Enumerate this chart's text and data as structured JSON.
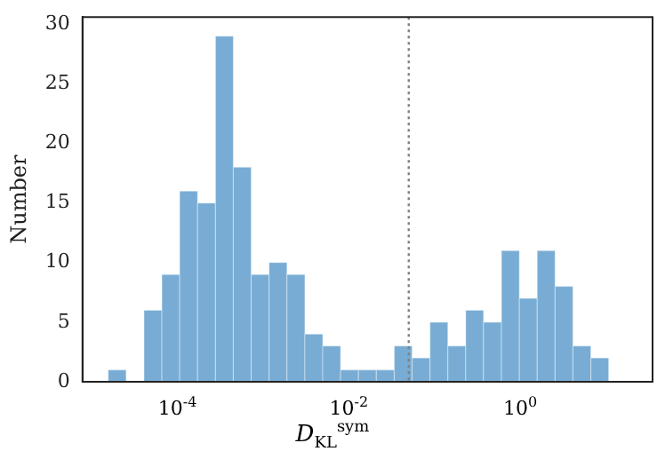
{
  "chart_data": {
    "type": "histogram",
    "xlabel": "D$_{KL}$$^{sym}$",
    "ylabel": "Number",
    "bins": [
      1.556e-05,
      2.52e-05,
      4.07e-05,
      6.58e-05,
      0.0001062,
      0.0001718,
      0.000278,
      0.000449,
      0.000726,
      0.001173,
      0.001897,
      0.00307,
      0.00496,
      0.00801,
      0.01295,
      0.02094,
      0.0339,
      0.0547,
      0.0885,
      0.1429,
      0.2312,
      0.373,
      0.604,
      0.977,
      1.578,
      2.55,
      4.12,
      6.67,
      10.77
    ],
    "values": [
      1,
      0,
      6,
      9,
      16,
      15,
      29,
      18,
      9,
      10,
      9,
      4,
      3,
      1,
      1,
      1,
      3,
      2,
      5,
      3,
      6,
      5,
      11,
      7,
      11,
      8,
      3,
      2
    ],
    "color": "#78acd4",
    "log": "x",
    "xlim": [
      7.8e-06,
      35
    ],
    "xticks": [
      {
        "value": 0.0001,
        "label": "10$^{-4}$"
      },
      {
        "value": 0.01,
        "label": "10$^{-2}$"
      },
      {
        "value": 1,
        "label": "10$^{0}$"
      }
    ],
    "ylim": [
      0,
      30.6
    ],
    "yticks": [
      0,
      5,
      10,
      15,
      20,
      25,
      30
    ],
    "ref_lines": [
      {
        "axis": "x",
        "value": 0.05,
        "color": "#808080",
        "line_style": "dotted"
      }
    ],
    "grid": false,
    "legend": false
  }
}
